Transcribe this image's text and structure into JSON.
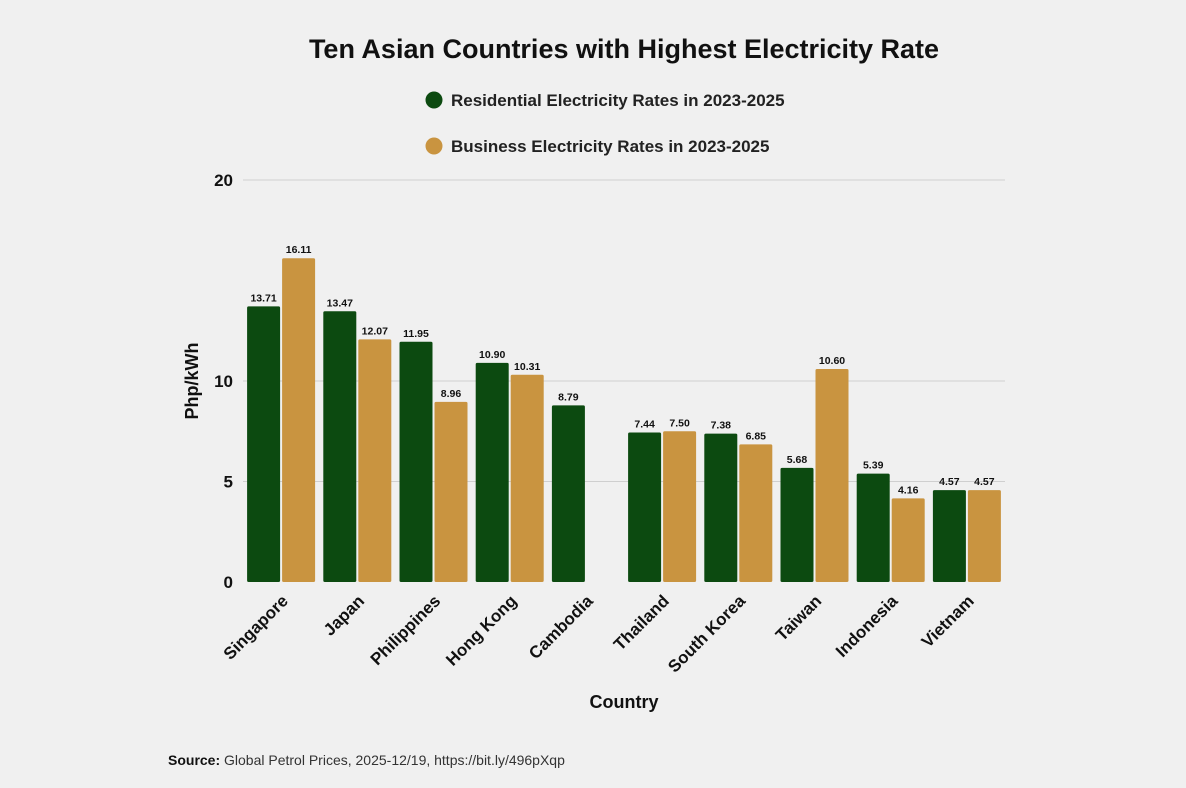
{
  "chart_data": {
    "type": "bar",
    "title": "Ten Asian Countries with Highest Electricity Rate",
    "xlabel": "Country",
    "ylabel": "Php/kWh",
    "ylim": [
      0,
      20
    ],
    "yticks": [
      0,
      5,
      10,
      20
    ],
    "categories": [
      "Singapore",
      "Japan",
      "Philippines",
      "Hong Kong",
      "Cambodia",
      "Thailand",
      "South Korea",
      "Taiwan",
      "Indonesia",
      "Vietnam"
    ],
    "series": [
      {
        "name": "Residential Electricity Rates in 2023-2025",
        "color": "#0c4a10",
        "values": [
          13.71,
          13.47,
          11.95,
          10.9,
          8.79,
          7.44,
          7.38,
          5.68,
          5.39,
          4.57
        ],
        "labels": [
          "13.71",
          "13.47",
          "11.95",
          "10.90",
          "8.79",
          "7.44",
          "7.38",
          "5.68",
          "5.39",
          "4.57"
        ]
      },
      {
        "name": "Business Electricity Rates in 2023-2025",
        "color": "#c99440",
        "values": [
          16.11,
          12.07,
          8.96,
          10.31,
          null,
          7.5,
          6.85,
          10.6,
          4.16,
          4.57
        ],
        "labels": [
          "16.11",
          "12.07",
          "8.96",
          "10.31",
          null,
          "7.50",
          "6.85",
          "10.60",
          "4.16",
          "4.57"
        ]
      }
    ],
    "legend_position": "top-center",
    "grid": true
  },
  "source": {
    "label": "Source:",
    "text": "Global Petrol Prices, 2025-12/19, https://bit.ly/496pXqp"
  }
}
